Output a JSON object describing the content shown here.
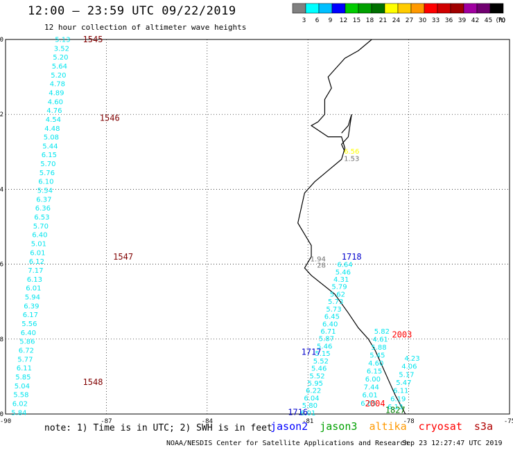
{
  "header": {
    "title": "12:00 – 23:59 UTC 09/22/2019",
    "subtitle": "12 hour collection of altimeter wave heights"
  },
  "legend": {
    "unit": "(ft)",
    "bins": [
      {
        "label": "3",
        "color": "#808080"
      },
      {
        "label": "6",
        "color": "#00ffff"
      },
      {
        "label": "9",
        "color": "#00bfff"
      },
      {
        "label": "12",
        "color": "#0000ff"
      },
      {
        "label": "15",
        "color": "#00cc00"
      },
      {
        "label": "18",
        "color": "#00a000"
      },
      {
        "label": "21",
        "color": "#007000"
      },
      {
        "label": "24",
        "color": "#ffff00"
      },
      {
        "label": "27",
        "color": "#ffcc00"
      },
      {
        "label": "30",
        "color": "#ff9900"
      },
      {
        "label": "33",
        "color": "#ff0000"
      },
      {
        "label": "36",
        "color": "#d00000"
      },
      {
        "label": "39",
        "color": "#a00000"
      },
      {
        "label": "42",
        "color": "#a000a0"
      },
      {
        "label": "45",
        "color": "#700070"
      },
      {
        "label": "70",
        "color": "#000000"
      }
    ]
  },
  "axes": {
    "lon_labels": [
      "-90",
      "-87",
      "-84",
      "-81",
      "-78",
      "-75"
    ],
    "lat_labels": [
      "0",
      "-2",
      "-4",
      "-6",
      "-8",
      "-10"
    ]
  },
  "footer": {
    "note": "note: 1) Time is in UTC; 2) SWH is in feet",
    "satellites": [
      {
        "name": "jason2",
        "color": "#0000ff"
      },
      {
        "name": "jason3",
        "color": "#00a000"
      },
      {
        "name": "altika",
        "color": "#ff9900"
      },
      {
        "name": "cryosat",
        "color": "#ff0000"
      },
      {
        "name": "s3a",
        "color": "#b00000"
      }
    ],
    "credit": "NOAA/NESDIS Center for Satellite Applications and Research",
    "timestamp": "Sep 23 12:27:47 UTC 2019"
  },
  "colors": {
    "cyan": "#00e5ee",
    "gray": "#707070",
    "yellow": "#ffff00",
    "blue": "#0000cc",
    "red": "#ff0000",
    "darkred": "#800000",
    "green": "#008000"
  },
  "passes": [
    {
      "name": "s3a_track_1545_1548",
      "color": "cyan",
      "start": [
        -88.3,
        0.01
      ],
      "end": [
        -89.6,
        -9.95
      ],
      "values": [
        "5.13",
        "3.52",
        "5.20",
        "5.64",
        "5.20",
        "4.78",
        "4.89",
        "4.60",
        "4.76",
        "4.54",
        "4.48",
        "5.08",
        "5.44",
        "6.15",
        "5.70",
        "5.76",
        "6.10",
        "5.54",
        "6.37",
        "6.36",
        "6.53",
        "5.70",
        "6.40",
        "5.01",
        "6.01",
        "6.12",
        "7.17",
        "6.13",
        "6.01",
        "5.94",
        "6.39",
        "6.17",
        "5.56",
        "6.40",
        "5.86",
        "6.72",
        "5.77",
        "6.11",
        "5.85",
        "5.04",
        "5.58",
        "6.02",
        "5.84"
      ]
    },
    {
      "name": "jason2_track_1716_1717",
      "color": "cyan",
      "start": [
        -79.9,
        -6.0
      ],
      "end": [
        -81.0,
        -9.96
      ],
      "values": [
        "6.64",
        "5.46",
        "4.31",
        "5.79",
        "5.62",
        "5.73",
        "5.73",
        "6.45",
        "6.40",
        "6.71",
        "5.87",
        "5.46",
        "5.15",
        "5.52",
        "5.46",
        "5.52",
        "5.95",
        "6.22",
        "6.04",
        "5.80",
        "6.01"
      ]
    },
    {
      "name": "cryosat_track_2003_2004",
      "color": "cyan",
      "start": [
        -78.8,
        -7.78
      ],
      "end": [
        -79.2,
        -9.7
      ],
      "values": [
        "5.82",
        "4.61",
        "5.88",
        "5.45",
        "4.60",
        "6.15",
        "6.00",
        "7.44",
        "6.01",
        "6.65"
      ]
    },
    {
      "name": "jason3_track_1827",
      "color": "cyan",
      "start": [
        -77.9,
        -8.5
      ],
      "end": [
        -78.4,
        -9.8
      ],
      "values": [
        "4.23",
        "4.06",
        "5.17",
        "5.47",
        "6.11",
        "6.19",
        "6.13"
      ]
    }
  ],
  "isolated_values": [
    {
      "text": "1.94",
      "color": "gray",
      "lon": -80.7,
      "lat": -5.85
    },
    {
      "text": "28",
      "color": "gray",
      "lon": -80.6,
      "lat": -6.02
    },
    {
      "text": "6.56",
      "color": "yellow",
      "lon": -79.7,
      "lat": -2.98
    },
    {
      "text": "1.53",
      "color": "gray",
      "lon": -79.7,
      "lat": -3.17
    }
  ],
  "time_labels": [
    {
      "text": "1545",
      "color": "darkred",
      "lon": -87.4,
      "lat": 0.0
    },
    {
      "text": "1546",
      "color": "darkred",
      "lon": -86.9,
      "lat": -2.1
    },
    {
      "text": "1547",
      "color": "darkred",
      "lon": -86.5,
      "lat": -5.8
    },
    {
      "text": "1548",
      "color": "darkred",
      "lon": -87.4,
      "lat": -9.15
    },
    {
      "text": "1718",
      "color": "blue",
      "lon": -79.7,
      "lat": -5.8
    },
    {
      "text": "1717",
      "color": "blue",
      "lon": -80.9,
      "lat": -8.35
    },
    {
      "text": "1716",
      "color": "blue",
      "lon": -81.3,
      "lat": -9.95
    },
    {
      "text": "2003",
      "color": "red",
      "lon": -78.2,
      "lat": -7.88
    },
    {
      "text": "2004",
      "color": "red",
      "lon": -79.0,
      "lat": -9.72
    },
    {
      "text": "1827",
      "color": "green",
      "lon": -78.4,
      "lat": -9.9
    }
  ],
  "coastline": [
    [
      -79.1,
      0.0
    ],
    [
      -79.5,
      -0.3
    ],
    [
      -79.9,
      -0.5
    ],
    [
      -80.2,
      -0.8
    ],
    [
      -80.4,
      -1.0
    ],
    [
      -80.3,
      -1.3
    ],
    [
      -80.5,
      -1.6
    ],
    [
      -80.5,
      -2.0
    ],
    [
      -80.7,
      -2.2
    ],
    [
      -80.9,
      -2.3
    ],
    [
      -80.4,
      -2.6
    ],
    [
      -80.0,
      -2.6
    ],
    [
      -79.9,
      -2.9
    ],
    [
      -80.0,
      -3.2
    ],
    [
      -80.4,
      -3.5
    ],
    [
      -80.8,
      -3.8
    ],
    [
      -81.1,
      -4.1
    ],
    [
      -81.2,
      -4.5
    ],
    [
      -81.3,
      -4.9
    ],
    [
      -81.1,
      -5.2
    ],
    [
      -80.9,
      -5.5
    ],
    [
      -80.9,
      -5.8
    ],
    [
      -81.1,
      -6.1
    ],
    [
      -80.9,
      -6.3
    ],
    [
      -80.2,
      -6.8
    ],
    [
      -79.8,
      -7.3
    ],
    [
      -79.5,
      -7.7
    ],
    [
      -79.2,
      -8.0
    ],
    [
      -79.0,
      -8.3
    ],
    [
      -78.8,
      -8.7
    ],
    [
      -78.6,
      -9.1
    ],
    [
      -78.4,
      -9.5
    ],
    [
      -78.1,
      -10.0
    ]
  ],
  "gulf_shape": [
    [
      -80.0,
      -2.5
    ],
    [
      -79.8,
      -2.3
    ],
    [
      -79.7,
      -2.0
    ],
    [
      -79.8,
      -2.6
    ],
    [
      -80.0,
      -2.8
    ],
    [
      -79.9,
      -3.0
    ]
  ],
  "islands": [
    [
      [
        -90.8,
        -0.6
      ],
      [
        -90.3,
        -0.8
      ],
      [
        -90.6,
        -1.0
      ],
      [
        -91.0,
        -0.9
      ]
    ],
    [
      [
        -90.5,
        -1.3
      ],
      [
        -90.3,
        -1.4
      ],
      [
        -90.5,
        -1.5
      ]
    ]
  ]
}
